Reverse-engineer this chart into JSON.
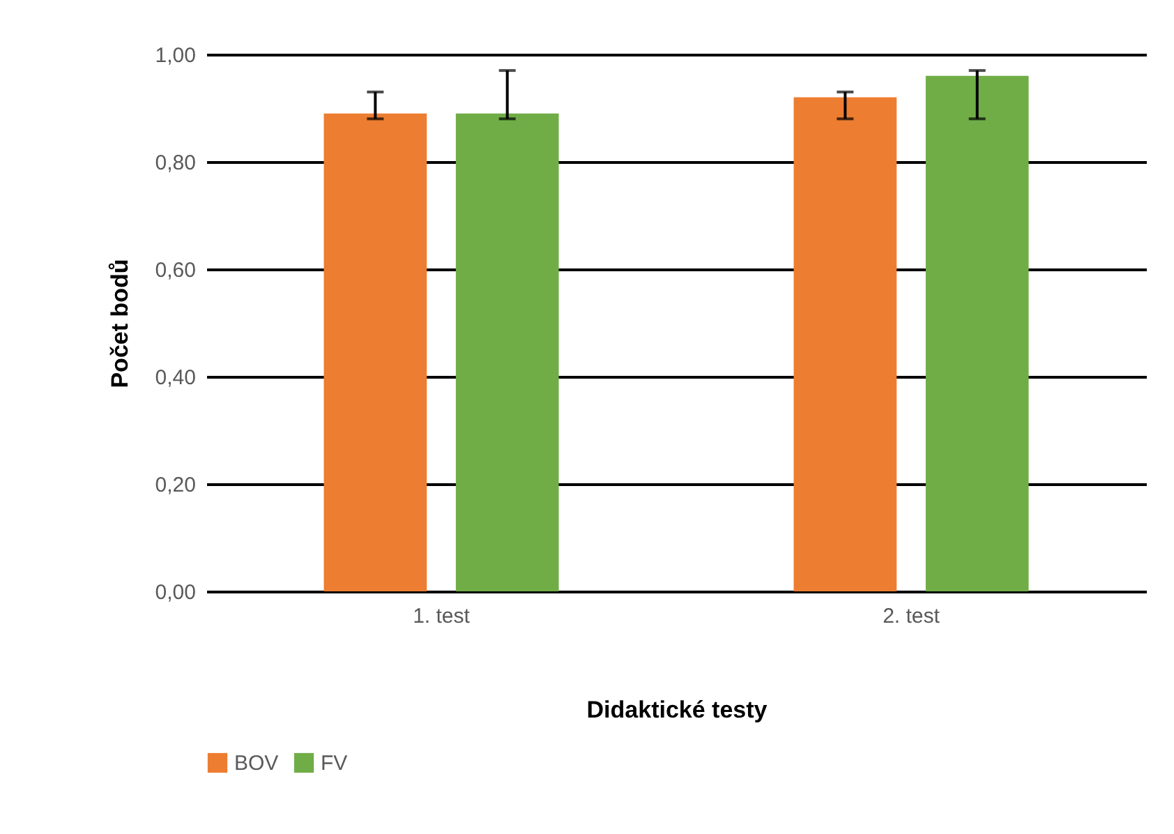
{
  "chart_data": {
    "type": "bar",
    "xlabel": "Didaktické testy",
    "ylabel": "Počet bodů",
    "categories": [
      "1. test",
      "2. test"
    ],
    "series": [
      {
        "name": "BOV",
        "color": "#ed7d31",
        "values": [
          0.89,
          0.92
        ],
        "errors": [
          [
            0.88,
            0.93
          ],
          [
            0.88,
            0.93
          ]
        ]
      },
      {
        "name": "FV",
        "color": "#70ad47",
        "values": [
          0.89,
          0.96
        ],
        "errors": [
          [
            0.88,
            0.97
          ],
          [
            0.88,
            0.97
          ]
        ]
      }
    ],
    "ylim": [
      0,
      1
    ],
    "yticks": [
      {
        "value": 0,
        "label": "0,00"
      },
      {
        "value": 0.2,
        "label": "0,20"
      },
      {
        "value": 0.4,
        "label": "0,40"
      },
      {
        "value": 0.6,
        "label": "0,60"
      },
      {
        "value": 0.8,
        "label": "0,80"
      },
      {
        "value": 1,
        "label": "1,00"
      }
    ],
    "grid": "y",
    "legend": "bottom"
  }
}
